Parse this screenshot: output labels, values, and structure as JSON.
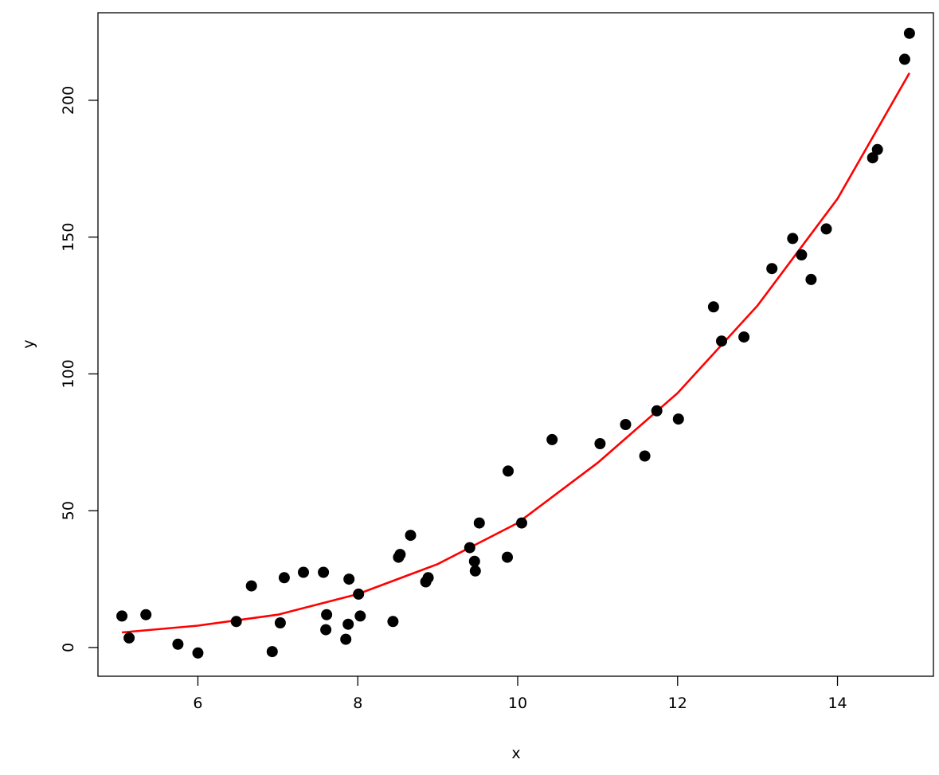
{
  "chart_data": {
    "type": "scatter",
    "title": "",
    "xlabel": "x",
    "ylabel": "y",
    "xlim": [
      4.75,
      15.2
    ],
    "ylim": [
      -10.5,
      232
    ],
    "xticks": [
      "6",
      "8",
      "10",
      "12",
      "14"
    ],
    "yticks": [
      "0",
      "50",
      "100",
      "150",
      "200"
    ],
    "grid": false,
    "colors": {
      "points": "#000000",
      "fit_line": "#ff0000"
    },
    "series": [
      {
        "kind": "points",
        "points": [
          [
            5.05,
            11.5
          ],
          [
            5.14,
            3.5
          ],
          [
            5.35,
            12.0
          ],
          [
            5.75,
            1.2
          ],
          [
            6.0,
            -2.0
          ],
          [
            6.48,
            9.5
          ],
          [
            6.67,
            22.5
          ],
          [
            6.93,
            -1.5
          ],
          [
            7.03,
            9.0
          ],
          [
            7.08,
            25.5
          ],
          [
            7.32,
            27.5
          ],
          [
            7.57,
            27.5
          ],
          [
            7.6,
            6.5
          ],
          [
            7.61,
            12.0
          ],
          [
            7.85,
            3.0
          ],
          [
            7.88,
            8.5
          ],
          [
            7.89,
            25.0
          ],
          [
            8.01,
            19.5
          ],
          [
            8.03,
            11.5
          ],
          [
            8.44,
            9.5
          ],
          [
            8.51,
            33.0
          ],
          [
            8.53,
            34.0
          ],
          [
            8.66,
            41.0
          ],
          [
            8.85,
            24.0
          ],
          [
            8.88,
            25.5
          ],
          [
            9.4,
            36.5
          ],
          [
            9.46,
            31.5
          ],
          [
            9.47,
            28.0
          ],
          [
            9.52,
            45.5
          ],
          [
            9.87,
            33.0
          ],
          [
            9.88,
            64.5
          ],
          [
            10.05,
            45.5
          ],
          [
            10.43,
            76.0
          ],
          [
            11.03,
            74.5
          ],
          [
            11.35,
            81.5
          ],
          [
            11.59,
            70.0
          ],
          [
            11.74,
            86.5
          ],
          [
            12.01,
            83.5
          ],
          [
            12.45,
            124.5
          ],
          [
            12.55,
            112.0
          ],
          [
            12.83,
            113.5
          ],
          [
            13.18,
            138.5
          ],
          [
            13.44,
            149.5
          ],
          [
            13.55,
            143.5
          ],
          [
            13.67,
            134.5
          ],
          [
            13.86,
            153.0
          ],
          [
            14.44,
            179.0
          ],
          [
            14.5,
            182.0
          ],
          [
            14.84,
            215.0
          ],
          [
            14.9,
            224.5
          ]
        ]
      },
      {
        "kind": "fit",
        "points": [
          [
            5.05,
            5.5
          ],
          [
            6.0,
            8.0
          ],
          [
            7.0,
            12.0
          ],
          [
            8.0,
            19.5
          ],
          [
            9.0,
            30.5
          ],
          [
            10.0,
            45.5
          ],
          [
            11.0,
            67.5
          ],
          [
            12.0,
            93.0
          ],
          [
            13.0,
            125.0
          ],
          [
            14.0,
            164.0
          ],
          [
            14.9,
            210.0
          ]
        ]
      }
    ]
  }
}
